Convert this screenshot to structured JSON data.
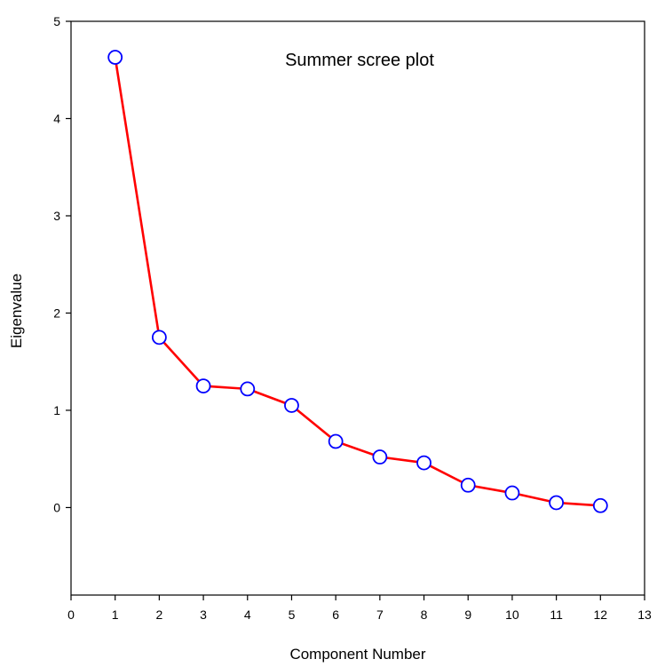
{
  "chart_data": {
    "type": "line",
    "title": "Summer scree plot",
    "xlabel": "Component Number",
    "ylabel": "Eigenvalue",
    "xlim": [
      0,
      13
    ],
    "ylim": [
      -0.9,
      5
    ],
    "xticks": [
      0,
      1,
      2,
      3,
      4,
      5,
      6,
      7,
      8,
      9,
      10,
      11,
      12,
      13
    ],
    "yticks": [
      0,
      1,
      2,
      3,
      4,
      5
    ],
    "grid": false,
    "legend": "none",
    "series": [
      {
        "x": [
          1,
          2,
          3,
          4,
          5,
          6,
          7,
          8,
          9,
          10,
          11,
          12
        ],
        "y": [
          4.63,
          1.75,
          1.25,
          1.22,
          1.05,
          0.68,
          0.52,
          0.46,
          0.23,
          0.15,
          0.05,
          0.02
        ],
        "line_color": "#ff0000",
        "marker": "circle",
        "marker_edge_color": "#0000ff",
        "marker_fill_color": "#ffffff"
      }
    ]
  }
}
